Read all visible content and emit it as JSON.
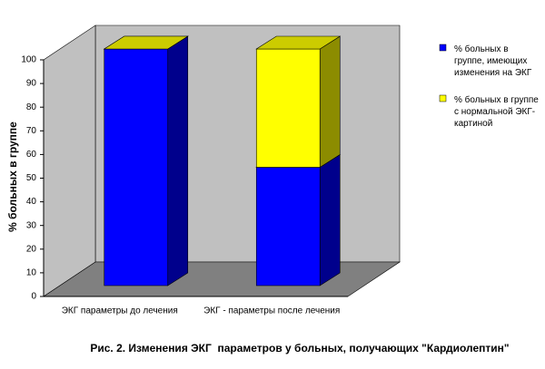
{
  "chart_data": {
    "type": "bar3d_stacked",
    "title": "Рис. 2. Изменения ЭКГ  параметров у больных, получающих \"Кардиолептин\"",
    "y_label": "% больных в группе",
    "categories": [
      "ЭКГ параметры до лечения",
      "ЭКГ - параметры после лечения"
    ],
    "series": [
      {
        "name": "% больных в группе, имеющих изменения на ЭКГ",
        "color": "#0000ff",
        "values": [
          100,
          50
        ]
      },
      {
        "name": "% больных в группе с нормальной ЭКГ-картиной",
        "color": "#ffff00",
        "values": [
          0,
          50
        ]
      }
    ],
    "ylim": [
      0,
      100
    ],
    "yticks": [
      0,
      10,
      20,
      30,
      40,
      50,
      60,
      70,
      80,
      90,
      100
    ],
    "grid": false,
    "legend": "right"
  }
}
